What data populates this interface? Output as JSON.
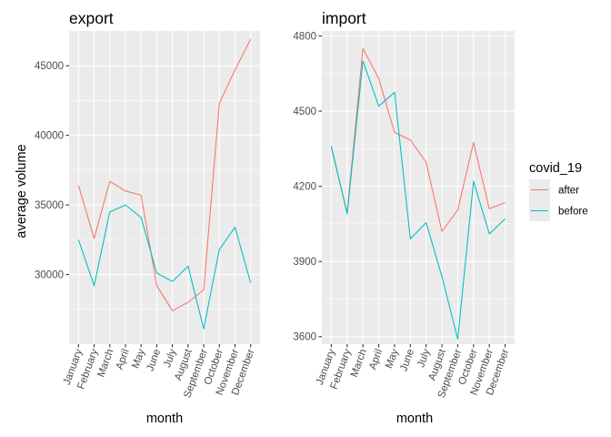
{
  "colors": {
    "after": "#F8766D",
    "before": "#00BFC4"
  },
  "legend": {
    "title": "covid_19",
    "items": [
      {
        "label": "after",
        "color": "#F8766D"
      },
      {
        "label": "before",
        "color": "#00BFC4"
      }
    ],
    "placement": "right"
  },
  "chart_data": [
    {
      "type": "line",
      "title": "export",
      "xlabel": "month",
      "ylabel": "average volume",
      "categories": [
        "January",
        "February",
        "March",
        "April",
        "May",
        "June",
        "July",
        "August",
        "September",
        "October",
        "November",
        "December"
      ],
      "ylim": [
        25000,
        47500
      ],
      "yticks": [
        30000,
        35000,
        40000,
        45000
      ],
      "ytick_labels": [
        "30000",
        "35000",
        "40000",
        "45000"
      ],
      "grid": true,
      "series": [
        {
          "name": "after",
          "color": "#F8766D",
          "values": [
            36400,
            32600,
            36700,
            36000,
            35700,
            29200,
            27400,
            28000,
            28900,
            42300,
            44700,
            46900
          ]
        },
        {
          "name": "before",
          "color": "#00BFC4",
          "values": [
            32500,
            29200,
            34500,
            35000,
            34100,
            30100,
            29500,
            30600,
            26100,
            31800,
            33400,
            29400
          ]
        }
      ]
    },
    {
      "type": "line",
      "title": "import",
      "xlabel": "month",
      "ylabel": "",
      "categories": [
        "January",
        "February",
        "March",
        "April",
        "May",
        "June",
        "July",
        "August",
        "September",
        "October",
        "November",
        "December"
      ],
      "ylim": [
        3570,
        4820
      ],
      "yticks": [
        3600,
        3900,
        4200,
        4500,
        4800
      ],
      "ytick_labels": [
        "3600",
        "3900",
        "4200",
        "4500",
        "4800"
      ],
      "grid": true,
      "series": [
        {
          "name": "after",
          "color": "#F8766D",
          "values": [
            4355,
            4095,
            4750,
            4630,
            4415,
            4385,
            4295,
            4020,
            4105,
            4375,
            4110,
            4135
          ]
        },
        {
          "name": "before",
          "color": "#00BFC4",
          "values": [
            4360,
            4090,
            4700,
            4520,
            4575,
            3990,
            4055,
            3840,
            3590,
            4220,
            4010,
            4070
          ]
        }
      ]
    }
  ]
}
